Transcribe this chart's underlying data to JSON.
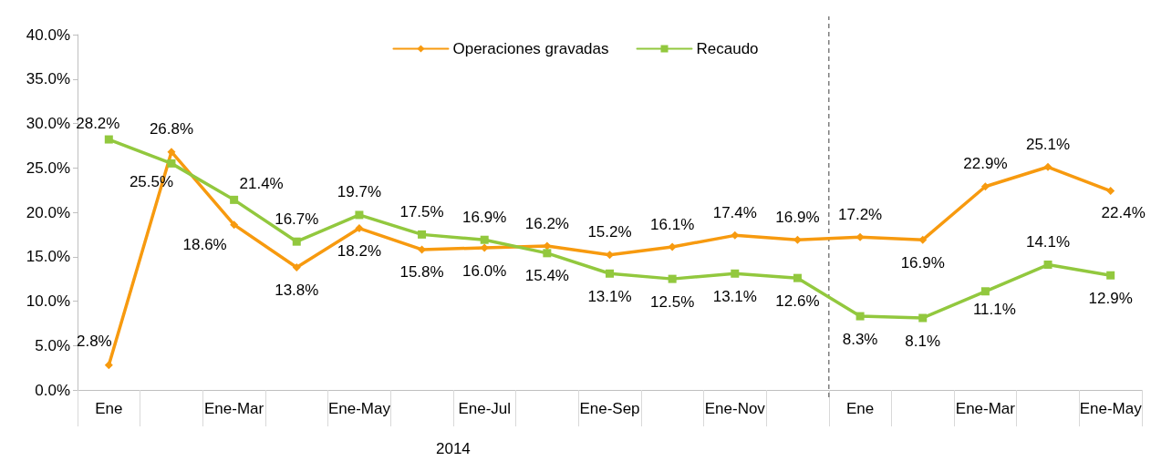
{
  "chart_data": {
    "type": "line",
    "categories": [
      "Ene",
      null,
      "Ene-Mar",
      null,
      "Ene-May",
      null,
      "Ene-Jul",
      null,
      "Ene-Sep",
      null,
      "Ene-Nov",
      null,
      "Ene",
      null,
      "Ene-Mar",
      null,
      "Ene-May"
    ],
    "series": [
      {
        "name": "Operaciones gravadas",
        "color": "#f79a0f",
        "marker": "diamond",
        "values": [
          2.8,
          26.8,
          18.6,
          13.8,
          18.2,
          15.8,
          16.0,
          16.2,
          15.2,
          16.1,
          17.4,
          16.9,
          17.2,
          16.9,
          22.9,
          25.1,
          22.4
        ],
        "value_labels": [
          "2.8%",
          "26.8%",
          "18.6%",
          "13.8%",
          "18.2%",
          "15.8%",
          "16.0%",
          "16.2%",
          "15.2%",
          "16.1%",
          "17.4%",
          "16.9%",
          "17.2%",
          "16.9%",
          "22.9%",
          "25.1%",
          "22.4%"
        ]
      },
      {
        "name": "Recaudo",
        "color": "#92c83e",
        "marker": "square",
        "values": [
          28.2,
          25.5,
          21.4,
          16.7,
          19.7,
          17.5,
          16.9,
          15.4,
          13.1,
          12.5,
          13.1,
          12.6,
          8.3,
          8.1,
          11.1,
          14.1,
          12.9
        ],
        "value_labels": [
          "28.2%",
          "25.5%",
          "21.4%",
          "16.7%",
          "19.7%",
          "17.5%",
          "16.9%",
          "15.4%",
          "13.1%",
          "12.5%",
          "13.1%",
          "12.6%",
          "8.3%",
          "8.1%",
          "11.1%",
          "14.1%",
          "12.9%"
        ]
      }
    ],
    "ylim": [
      0,
      40
    ],
    "yticks": [
      {
        "value": 0,
        "label": "0.0%"
      },
      {
        "value": 5,
        "label": "5.0%"
      },
      {
        "value": 10,
        "label": "10.0%"
      },
      {
        "value": 15,
        "label": "15.0%"
      },
      {
        "value": 20,
        "label": "20.0%"
      },
      {
        "value": 25,
        "label": "25.0%"
      },
      {
        "value": 30,
        "label": "30.0%"
      },
      {
        "value": 35,
        "label": "35.0%"
      },
      {
        "value": 40,
        "label": "40.0%"
      }
    ],
    "grid": false,
    "legend": "top",
    "line_style": "solid",
    "annotations": [
      "2014"
    ]
  }
}
